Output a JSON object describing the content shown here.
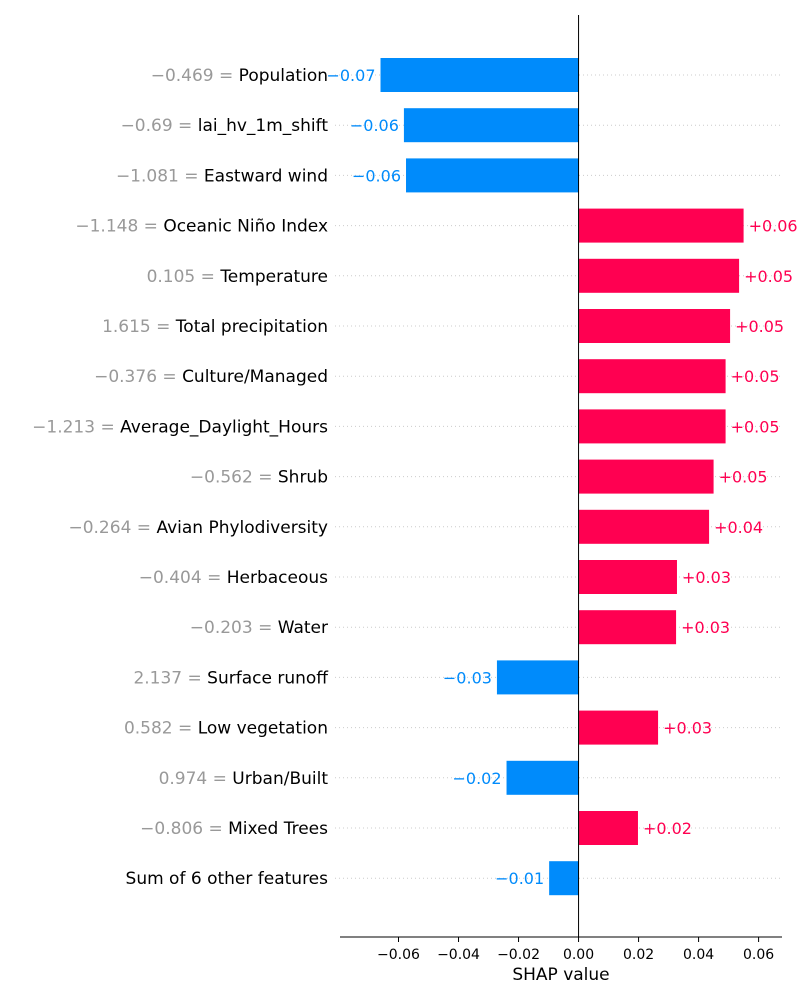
{
  "chart_data": {
    "type": "bar",
    "orientation": "horizontal",
    "xlabel": "SHAP value",
    "xlim": [
      -0.0795,
      0.0678
    ],
    "xticks": [
      -0.06,
      -0.04,
      -0.02,
      0.0,
      0.02,
      0.04,
      0.06
    ],
    "xtick_labels": [
      "−0.06",
      "−0.04",
      "−0.02",
      "0.00",
      "0.02",
      "0.04",
      "0.06"
    ],
    "colors": {
      "positive": "#ff0051",
      "negative": "#008bfb",
      "feature_value_text": "#999999",
      "gridline": "#cccccc",
      "zero_line": "#000000"
    },
    "rows": [
      {
        "value_text": "−0.469 =",
        "feature": "Population",
        "shap": -0.066,
        "label": "−0.07"
      },
      {
        "value_text": "−0.69 =",
        "feature": "lai_hv_1m_shift",
        "shap": -0.0582,
        "label": "−0.06"
      },
      {
        "value_text": "−1.081 =",
        "feature": "Eastward wind",
        "shap": -0.0575,
        "label": "−0.06"
      },
      {
        "value_text": "−1.148 =",
        "feature": "Oceanic Niño Index",
        "shap": 0.055,
        "label": "+0.06"
      },
      {
        "value_text": "0.105 =",
        "feature": "Temperature",
        "shap": 0.0535,
        "label": "+0.05"
      },
      {
        "value_text": "1.615 =",
        "feature": "Total precipitation",
        "shap": 0.0505,
        "label": "+0.05"
      },
      {
        "value_text": "−0.376 =",
        "feature": "Culture/Managed",
        "shap": 0.049,
        "label": "+0.05"
      },
      {
        "value_text": "−1.213 =",
        "feature": "Average_Daylight_Hours",
        "shap": 0.049,
        "label": "+0.05"
      },
      {
        "value_text": "−0.562 =",
        "feature": "Shrub",
        "shap": 0.045,
        "label": "+0.05"
      },
      {
        "value_text": "−0.264 =",
        "feature": "Avian Phylodiversity",
        "shap": 0.0435,
        "label": "+0.04"
      },
      {
        "value_text": "−0.404 =",
        "feature": "Herbaceous",
        "shap": 0.0328,
        "label": "+0.03"
      },
      {
        "value_text": "−0.203 =",
        "feature": "Water",
        "shap": 0.0325,
        "label": "+0.03"
      },
      {
        "value_text": "2.137 =",
        "feature": "Surface runoff",
        "shap": -0.0272,
        "label": "−0.03"
      },
      {
        "value_text": "0.582 =",
        "feature": "Low vegetation",
        "shap": 0.0265,
        "label": "+0.03"
      },
      {
        "value_text": "0.974 =",
        "feature": "Urban/Built",
        "shap": -0.024,
        "label": "−0.02"
      },
      {
        "value_text": "−0.806 =",
        "feature": "Mixed Trees",
        "shap": 0.0198,
        "label": "+0.02"
      },
      {
        "value_text": "",
        "feature": "Sum of 6 other features",
        "shap": -0.0098,
        "label": "−0.01"
      }
    ]
  }
}
